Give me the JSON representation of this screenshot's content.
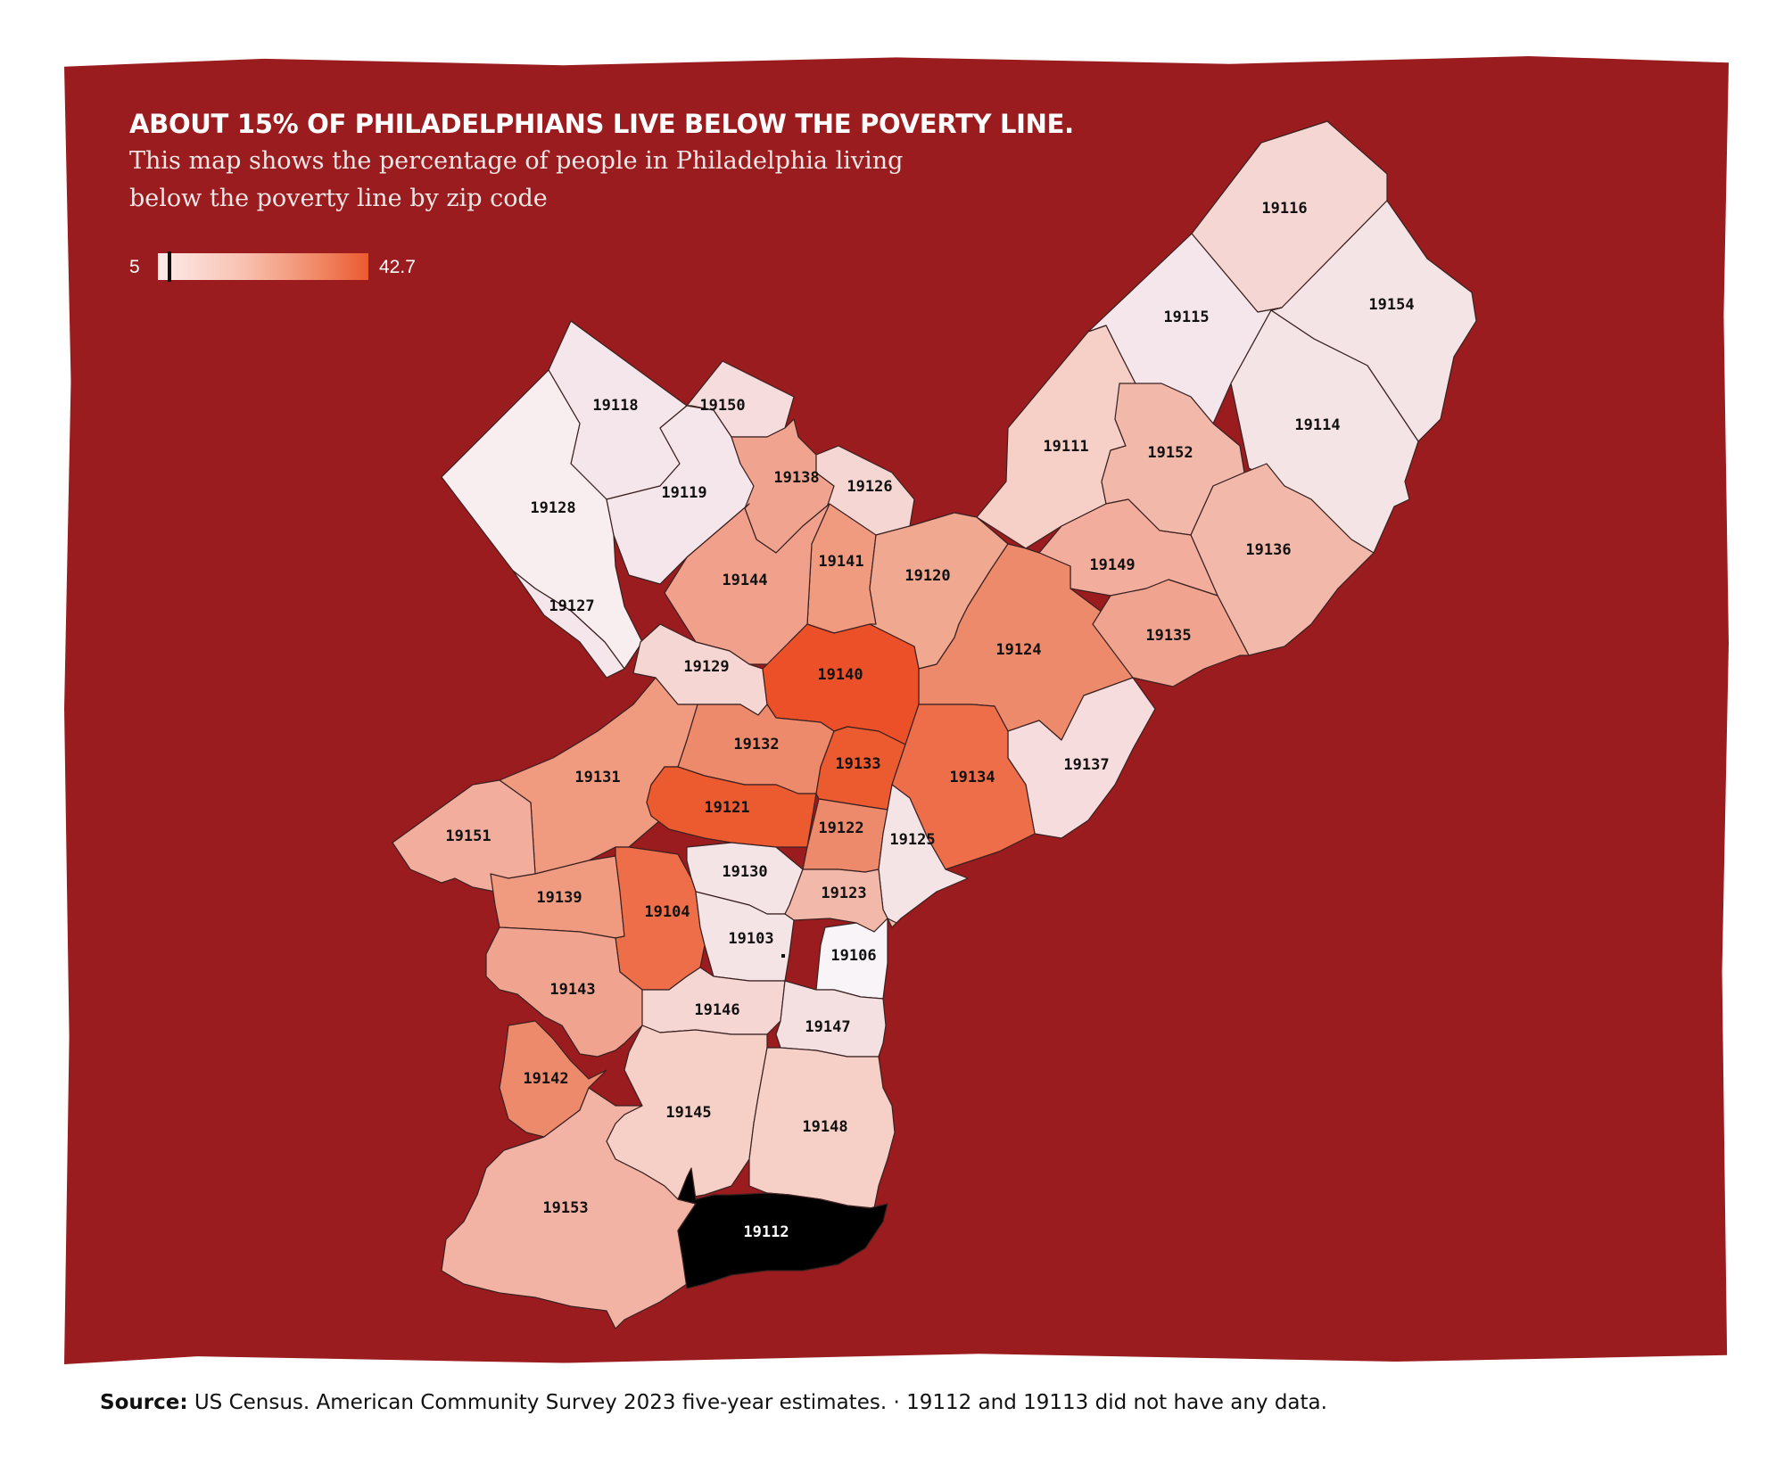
{
  "header": {
    "title": "ABOUT 15% OF PHILADELPHIANS LIVE BELOW THE POVERTY LINE.",
    "subtitle": "This map shows the percentage of people in Philadelphia living below the poverty line by zip code"
  },
  "legend": {
    "min": "5",
    "max": "42.7",
    "min_value": 5,
    "max_value": 42.7,
    "marker_value": 7,
    "colors": [
      "#fdecea",
      "#f8c2b2",
      "#f08a68",
      "#ec5a30"
    ]
  },
  "colors": {
    "background": "#9b1c1f",
    "boundary": "#3a2020",
    "no_data": "#000000"
  },
  "chart_data": {
    "type": "choropleth",
    "regions": [
      {
        "zip": "19116",
        "color": "#f6d6d2"
      },
      {
        "zip": "19154",
        "color": "#f4e4e6"
      },
      {
        "zip": "19115",
        "color": "#f4e6ea"
      },
      {
        "zip": "19114",
        "color": "#f4e4e6"
      },
      {
        "zip": "19118",
        "color": "#f4e6ea"
      },
      {
        "zip": "19150",
        "color": "#f6dcdc"
      },
      {
        "zip": "19111",
        "color": "#f6cfc6"
      },
      {
        "zip": "19152",
        "color": "#f2b8aa"
      },
      {
        "zip": "19128",
        "color": "#f8eef0"
      },
      {
        "zip": "19119",
        "color": "#f4e6ea"
      },
      {
        "zip": "19138",
        "color": "#f0a48f"
      },
      {
        "zip": "19126",
        "color": "#f6d6d2"
      },
      {
        "zip": "19136",
        "color": "#f2b8aa"
      },
      {
        "zip": "19141",
        "color": "#f09a80"
      },
      {
        "zip": "19149",
        "color": "#f2ad9c"
      },
      {
        "zip": "19144",
        "color": "#f0a08b"
      },
      {
        "zip": "19120",
        "color": "#f0a890"
      },
      {
        "zip": "19127",
        "color": "#f4e6ea"
      },
      {
        "zip": "19124",
        "color": "#ee8a6c"
      },
      {
        "zip": "19135",
        "color": "#f0a48f"
      },
      {
        "zip": "19129",
        "color": "#f6d6d2"
      },
      {
        "zip": "19140",
        "color": "#ec5028"
      },
      {
        "zip": "19137",
        "color": "#f6dcdc"
      },
      {
        "zip": "19132",
        "color": "#ee8a6c"
      },
      {
        "zip": "19133",
        "color": "#ec5a30"
      },
      {
        "zip": "19134",
        "color": "#ee6e4a"
      },
      {
        "zip": "19131",
        "color": "#f09a80"
      },
      {
        "zip": "19121",
        "color": "#ec5a30"
      },
      {
        "zip": "19151",
        "color": "#f2ad9c"
      },
      {
        "zip": "19122",
        "color": "#ee8a6c"
      },
      {
        "zip": "19125",
        "color": "#f4e4e6"
      },
      {
        "zip": "19130",
        "color": "#f4e4e6"
      },
      {
        "zip": "19139",
        "color": "#f09a80"
      },
      {
        "zip": "19104",
        "color": "#ee6e4a"
      },
      {
        "zip": "19123",
        "color": "#f2b8aa"
      },
      {
        "zip": "19103",
        "color": "#f4e4e6"
      },
      {
        "zip": "19106",
        "color": "#f8f4f8"
      },
      {
        "zip": "19143",
        "color": "#f0a48f"
      },
      {
        "zip": "19146",
        "color": "#f6d6d2"
      },
      {
        "zip": "19147",
        "color": "#f4e0e0"
      },
      {
        "zip": "19142",
        "color": "#ee8a6c"
      },
      {
        "zip": "19145",
        "color": "#f6cfc6"
      },
      {
        "zip": "19148",
        "color": "#f6cfc6"
      },
      {
        "zip": "19153",
        "color": "#f2b3a4"
      },
      {
        "zip": "19112",
        "color": "#000000"
      }
    ]
  },
  "footer": {
    "source_label": "Source:",
    "source_text": "US Census. American Community Survey 2023 five-year estimates. · 19112 and 19113 did not have any data."
  }
}
